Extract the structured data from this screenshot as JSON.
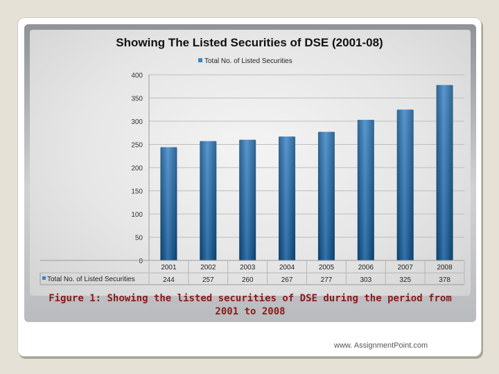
{
  "chart_data": {
    "type": "bar",
    "title": "Showing The Listed Securities of DSE (2001-08)",
    "categories": [
      "2001",
      "2002",
      "2003",
      "2004",
      "2005",
      "2006",
      "2007",
      "2008"
    ],
    "series": [
      {
        "name": "Total No. of Listed Securities",
        "values": [
          244,
          257,
          260,
          267,
          277,
          303,
          325,
          378
        ]
      }
    ],
    "ylim": [
      0,
      400
    ],
    "yticks": [
      0,
      50,
      100,
      150,
      200,
      250,
      300,
      350,
      400
    ],
    "legend": "top-center",
    "data_table": true,
    "grid": true
  },
  "caption": {
    "line1": "Figure 1: Showing the listed securities of DSE during the period from",
    "line2": "2001 to 2008"
  },
  "footer": {
    "text": "www. AssignmentPoint.com"
  },
  "colors": {
    "bar_dark": "#0b4a7c",
    "bar_light": "#3c85c8",
    "caption": "#8a1a1a"
  }
}
